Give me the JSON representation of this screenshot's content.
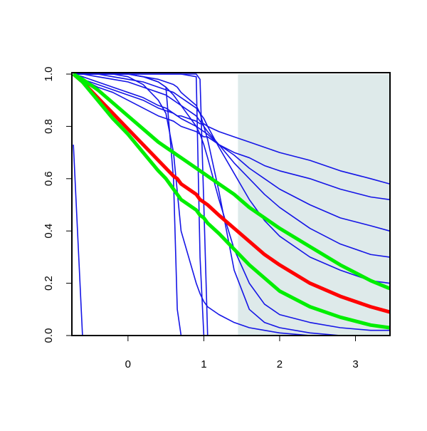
{
  "chart_data": {
    "type": "line",
    "x": [
      -0.72,
      -0.6,
      -0.4,
      -0.2,
      0,
      0.2,
      0.4,
      0.5,
      0.6,
      0.65,
      0.7,
      0.9,
      0.95,
      1.0,
      1.05,
      1.2,
      1.4,
      1.6,
      1.8,
      2.0,
      2.4,
      2.8,
      3.2,
      3.45
    ],
    "xlim": [
      -0.74,
      3.455
    ],
    "ylim": [
      0,
      1
    ],
    "xticks": [
      0,
      1,
      2,
      3
    ],
    "yticks": [
      {
        "value": 0,
        "label": "0.0"
      },
      {
        "value": 0.2,
        "label": "0.2"
      },
      {
        "value": 0.4,
        "label": "0.4"
      },
      {
        "value": 0.6,
        "label": "0.6"
      },
      {
        "value": 0.8,
        "label": "0.8"
      },
      {
        "value": 1,
        "label": "1.0"
      }
    ],
    "shade": {
      "xlim": [
        1.45,
        3.455
      ],
      "ylim": [
        0,
        1
      ],
      "color": "#deeaea"
    },
    "series": [
      {
        "color": "#1515e6",
        "values": [
          0.73,
          0,
          0,
          0,
          0,
          0,
          0,
          0,
          0,
          0,
          0,
          0,
          0,
          0,
          0,
          0,
          0,
          0,
          0,
          0,
          0,
          0,
          0,
          0
        ]
      },
      {
        "color": "#1515e6",
        "values": [
          1,
          1,
          1,
          1,
          1,
          0.99,
          0.97,
          0.95,
          0.6,
          0.1,
          0,
          0,
          0,
          0,
          0,
          0,
          0,
          0,
          0,
          0,
          0,
          0,
          0,
          0
        ]
      },
      {
        "color": "#1515e6",
        "values": [
          1,
          1,
          1,
          1,
          1,
          1,
          1,
          1,
          1,
          1,
          1,
          1,
          0.98,
          0.5,
          0,
          0,
          0,
          0,
          0,
          0,
          0,
          0,
          0,
          0
        ]
      },
      {
        "color": "#1515e6",
        "values": [
          1,
          1,
          1,
          1,
          1,
          1,
          1,
          1,
          1,
          1,
          1,
          0.99,
          0.3,
          0,
          0,
          0,
          0,
          0,
          0,
          0,
          0,
          0,
          0,
          0
        ]
      },
      {
        "color": "#1515e6",
        "values": [
          1,
          1,
          1,
          1,
          1,
          0.99,
          0.98,
          0.97,
          0.96,
          0.95,
          0.93,
          0.88,
          0.85,
          0.8,
          0.75,
          0.55,
          0.25,
          0.1,
          0.05,
          0.03,
          0.01,
          0,
          0,
          0
        ]
      },
      {
        "color": "#1515e6",
        "values": [
          1,
          0.98,
          0.96,
          0.94,
          0.92,
          0.9,
          0.87,
          0.86,
          0.85,
          0.84,
          0.84,
          0.82,
          0.81,
          0.81,
          0.8,
          0.78,
          0.76,
          0.74,
          0.72,
          0.7,
          0.67,
          0.63,
          0.6,
          0.58
        ]
      },
      {
        "color": "#1515e6",
        "values": [
          1,
          0.98,
          0.95,
          0.93,
          0.9,
          0.87,
          0.84,
          0.83,
          0.82,
          0.81,
          0.8,
          0.78,
          0.77,
          0.76,
          0.76,
          0.73,
          0.7,
          0.68,
          0.65,
          0.63,
          0.6,
          0.56,
          0.53,
          0.52
        ]
      },
      {
        "color": "#1515e6",
        "values": [
          1,
          0.99,
          0.97,
          0.95,
          0.93,
          0.91,
          0.88,
          0.87,
          0.85,
          0.84,
          0.83,
          0.8,
          0.79,
          0.78,
          0.77,
          0.73,
          0.69,
          0.64,
          0.6,
          0.56,
          0.5,
          0.45,
          0.42,
          0.4
        ]
      },
      {
        "color": "#1515e6",
        "values": [
          1,
          1,
          0.99,
          0.98,
          0.97,
          0.95,
          0.93,
          0.92,
          0.9,
          0.89,
          0.88,
          0.84,
          0.82,
          0.8,
          0.78,
          0.73,
          0.66,
          0.6,
          0.54,
          0.49,
          0.41,
          0.35,
          0.31,
          0.3
        ]
      },
      {
        "color": "#1515e6",
        "values": [
          1,
          1,
          1,
          0.99,
          0.98,
          0.97,
          0.95,
          0.94,
          0.93,
          0.92,
          0.91,
          0.87,
          0.85,
          0.83,
          0.8,
          0.72,
          0.62,
          0.52,
          0.44,
          0.38,
          0.3,
          0.25,
          0.21,
          0.2
        ]
      },
      {
        "color": "#1515e6",
        "values": [
          1,
          1,
          1,
          1,
          0.99,
          0.96,
          0.9,
          0.85,
          0.7,
          0.55,
          0.4,
          0.2,
          0.16,
          0.13,
          0.11,
          0.08,
          0.05,
          0.03,
          0.02,
          0.01,
          0,
          0,
          0,
          0
        ]
      },
      {
        "color": "#1515e6",
        "values": [
          1,
          1,
          1,
          1,
          1,
          0.99,
          0.97,
          0.95,
          0.92,
          0.9,
          0.88,
          0.8,
          0.77,
          0.73,
          0.68,
          0.52,
          0.33,
          0.2,
          0.12,
          0.08,
          0.05,
          0.03,
          0.02,
          0.02
        ]
      },
      {
        "color": "#ff0000",
        "values": [
          1.0,
          0.97,
          0.91,
          0.85,
          0.79,
          0.73,
          0.67,
          0.64,
          0.61,
          0.6,
          0.58,
          0.54,
          0.52,
          0.51,
          0.5,
          0.46,
          0.41,
          0.36,
          0.31,
          0.27,
          0.2,
          0.15,
          0.11,
          0.09
        ]
      },
      {
        "color": "#00ee00",
        "values": [
          1.0,
          0.98,
          0.94,
          0.89,
          0.84,
          0.79,
          0.74,
          0.72,
          0.7,
          0.69,
          0.68,
          0.64,
          0.63,
          0.62,
          0.61,
          0.58,
          0.54,
          0.49,
          0.45,
          0.41,
          0.34,
          0.27,
          0.21,
          0.18
        ]
      },
      {
        "color": "#00ee00",
        "values": [
          1.0,
          0.97,
          0.9,
          0.83,
          0.77,
          0.7,
          0.63,
          0.6,
          0.56,
          0.54,
          0.52,
          0.48,
          0.46,
          0.45,
          0.43,
          0.39,
          0.33,
          0.27,
          0.22,
          0.17,
          0.11,
          0.07,
          0.04,
          0.03
        ]
      }
    ]
  }
}
